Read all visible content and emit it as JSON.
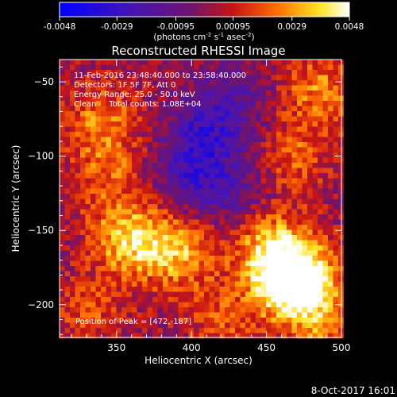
{
  "chart_data": {
    "type": "heatmap",
    "title": "Reconstructed RHESSI Image",
    "xlabel": "Heliocentric X (arcsec)",
    "ylabel": "Heliocentric Y (arcsec)",
    "xlim": [
      312,
      500
    ],
    "ylim": [
      -222,
      -35
    ],
    "x_ticks": [
      350,
      400,
      450,
      500
    ],
    "y_ticks": [
      -50,
      -100,
      -150,
      -200
    ],
    "colorbar": {
      "range": [
        -0.0048,
        0.0048
      ],
      "ticks": [
        "-0.0048",
        "-0.0029",
        "-0.00095",
        "0.00095",
        "0.0029",
        "0.0048"
      ],
      "unit_prefix": "(photons cm",
      "unit_mid": " s",
      "unit_suffix": " asec",
      "unit_close": ")",
      "sup_cm": "-2",
      "sup_s": "-1",
      "sup_asec": "-2",
      "colormap": "blue-purple-red-orange-yellow-white"
    },
    "annotations": [
      "11-Feb-2016 23:48:40.000 to 23:58:40.000",
      "Detectors: 1F 5F 7F, Att 0",
      "Energy Range: 25.0 - 50.0 keV",
      "Clean     Total counts: 1.08E+04"
    ],
    "peak_label": "Position of Peak = [472,-187]",
    "peak": [
      472,
      -187
    ],
    "sources": [
      {
        "x": 357,
        "y": -155,
        "amp": 0.0034
      },
      {
        "x": 390,
        "y": -163,
        "amp": 0.0032
      },
      {
        "x": 463,
        "y": -178,
        "amp": 0.0036
      },
      {
        "x": 472,
        "y": -187,
        "amp": 0.004
      },
      {
        "x": 452,
        "y": -158,
        "amp": 0.0022
      },
      {
        "x": 340,
        "y": -75,
        "amp": 0.0022
      },
      {
        "x": 345,
        "y": -110,
        "amp": 0.0018
      },
      {
        "x": 485,
        "y": -55,
        "amp": 0.0024
      },
      {
        "x": 470,
        "y": -100,
        "amp": 0.0018
      },
      {
        "x": 420,
        "y": -210,
        "amp": 0.0016
      },
      {
        "x": 332,
        "y": -205,
        "amp": 0.0015
      },
      {
        "x": 490,
        "y": -215,
        "amp": 0.0018
      }
    ],
    "negative_regions": [
      {
        "x": 410,
        "y": -85,
        "amp": -0.0024
      },
      {
        "x": 395,
        "y": -115,
        "amp": -0.0018
      },
      {
        "x": 425,
        "y": -125,
        "amp": -0.0016
      },
      {
        "x": 430,
        "y": -60,
        "amp": -0.0012
      }
    ],
    "background": 0.0001,
    "grid": false
  },
  "timestamp": "8-Oct-2017 16:01"
}
